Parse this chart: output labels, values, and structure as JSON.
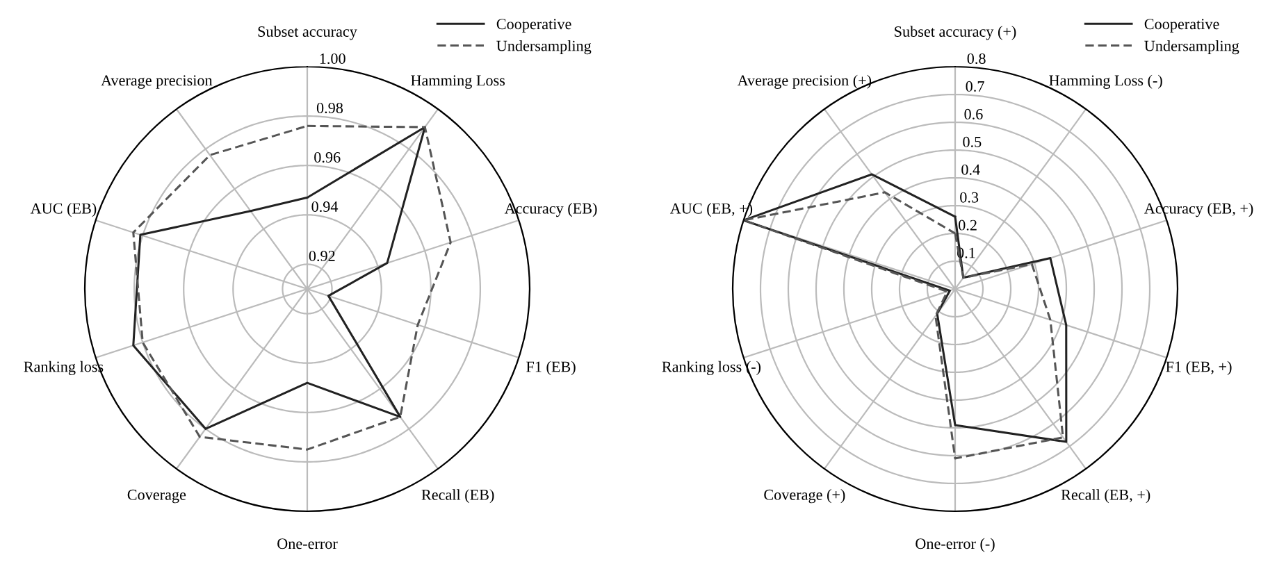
{
  "chart_data": [
    {
      "type": "radar",
      "categories": [
        "Subset accuracy",
        "Hamming Loss",
        "Accuracy (EB)",
        "F1 (EB)",
        "Recall (EB)",
        "One-error",
        "Coverage",
        "Ranking loss",
        "AUC (EB)",
        "Average precision"
      ],
      "series": [
        {
          "name": "Cooperative",
          "color": "#222222",
          "line_style": "solid",
          "values": [
            0.947,
            0.991,
            0.944,
            0.919,
            0.974,
            0.948,
            0.98,
            0.984,
            0.981,
            0.949
          ]
        },
        {
          "name": "Undersampling",
          "color": "#555555",
          "line_style": "dashed",
          "values": [
            0.976,
            0.991,
            0.971,
            0.957,
            0.974,
            0.975,
            0.984,
            0.98,
            0.984,
            0.977
          ]
        }
      ],
      "ylim": [
        0.91,
        1.0
      ],
      "yticks": [
        0.92,
        0.94,
        0.96,
        0.98,
        {
          "value": 1.0,
          "label": "1.00"
        }
      ],
      "grid": true,
      "legend": "top right"
    },
    {
      "type": "radar",
      "categories": [
        "Subset accuracy (+)",
        "Hamming Loss (-)",
        "Accuracy (EB, +)",
        "F1 (EB, +)",
        "Recall (EB, +)",
        "One-error (-)",
        "Coverage (+)",
        "Ranking loss (-)",
        "AUC (EB, +)",
        "Average precision (+)"
      ],
      "series": [
        {
          "name": "Cooperative",
          "color": "#222222",
          "line_style": "solid",
          "values": [
            0.26,
            0.05,
            0.36,
            0.42,
            0.68,
            0.49,
            0.11,
            0.02,
            0.8,
            0.51
          ]
        },
        {
          "name": "Undersampling",
          "color": "#555555",
          "line_style": "dashed",
          "values": [
            0.2,
            0.05,
            0.29,
            0.36,
            0.66,
            0.61,
            0.12,
            0.03,
            0.8,
            0.43
          ]
        }
      ],
      "ylim": [
        0,
        0.8
      ],
      "yticks": [
        0.1,
        0.2,
        0.3,
        0.4,
        0.5,
        0.6,
        0.7,
        0.8
      ],
      "grid": true,
      "legend": "top right"
    }
  ]
}
